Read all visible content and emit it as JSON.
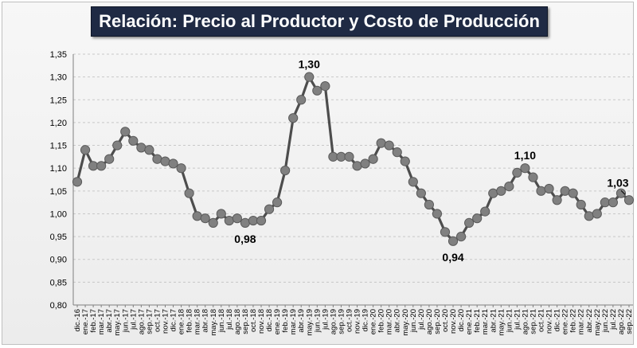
{
  "chart_data": {
    "type": "line",
    "title": "Relación: Precio al Productor y Costo de Producción",
    "xlabel": "",
    "ylabel": "",
    "ylim": [
      0.8,
      1.35
    ],
    "y_ticks": [
      "0,80",
      "0,85",
      "0,90",
      "0,95",
      "1,00",
      "1,05",
      "1,10",
      "1,15",
      "1,20",
      "1,25",
      "1,30",
      "1,35"
    ],
    "grid": true,
    "legend": "none",
    "categories": [
      "dic.-16",
      "ene.-17",
      "feb.-17",
      "mar.-17",
      "abr.-17",
      "may.-17",
      "jun.-17",
      "jul.-17",
      "ago.-17",
      "sep.-17",
      "oct.-17",
      "nov.-17",
      "dic.-17",
      "ene.-18",
      "feb.-18",
      "mar.-18",
      "abr.-18",
      "may.-18",
      "jun.-18",
      "jul.-18",
      "ago.-18",
      "sep.-18",
      "oct.-18",
      "nov.-18",
      "dic.-18",
      "ene.-19",
      "feb.-19",
      "mar.-19",
      "abr.-19",
      "may.-19",
      "jun.-19",
      "jul.-19",
      "ago.-19",
      "sep.-19",
      "oct.-19",
      "nov.-19",
      "dic.-19",
      "ene.-20",
      "feb.-20",
      "mar.-20",
      "abr.-20",
      "may.-20",
      "jun.-20",
      "jul.-20",
      "ago.-20",
      "sep.-20",
      "oct.-20",
      "nov.-20",
      "dic.-20",
      "ene.-21",
      "feb.-21",
      "mar.-21",
      "abr.-21",
      "may.-21",
      "jun.-21",
      "jul.-21",
      "ago.-21",
      "sep.-21",
      "oct.-21",
      "nov.-21",
      "dic.-21",
      "ene.-22",
      "feb.-22",
      "mar.-22",
      "abr.-22",
      "may.-22",
      "jun.-22",
      "jul.-22",
      "ago.-22",
      "sep.-22"
    ],
    "x_tick_labels": [
      "dic.-16",
      "ene.-17",
      "feb.-17",
      "mar.-17",
      "abr.-17",
      "may.-17",
      "jun.-17",
      "jul.-17",
      "ago.-17",
      "sep.-17",
      "oct.-17",
      "nov.-17",
      "dic.-17",
      "ene.-18",
      "feb.-18",
      "mar.-18",
      "abr.-18",
      "may.-18",
      "jun.-18",
      "jul.-18",
      "ago.-18",
      "sep.-18",
      "oct.-18",
      "nov.-18",
      "dic.-18",
      "ene.-19",
      "feb.-19",
      "mar.-19",
      "abr.-19",
      "may.-19",
      "jun.-19",
      "jul.-19",
      "ago.-19",
      "sep.-19",
      "oct.-19",
      "nov.-19",
      "dic.-19",
      "ene.-20",
      "feb.-20",
      "mar.-20",
      "abr.-20",
      "may.-20",
      "jun.-20",
      "jul.-20",
      "ago.-20",
      "sep.-20",
      "oct.-20",
      "nov.-20",
      "dic.-20",
      "ene.-21",
      "feb.-21",
      "mar.-21",
      "abr.-21",
      "may.-21",
      "jun.-21",
      "jul.-21",
      "ago.-21",
      "sep.-21",
      "oct.-21",
      "nov.-21",
      "dic.-21",
      "ene.-22",
      "feb.-22",
      "mar.-22",
      "abr.-22",
      "may.-22",
      "jun.-22",
      "jul.-22",
      "ago.-22",
      "sep.-22"
    ],
    "series": [
      {
        "values": [
          1.07,
          1.14,
          1.105,
          1.105,
          1.12,
          1.15,
          1.18,
          1.16,
          1.145,
          1.14,
          1.12,
          1.115,
          1.11,
          1.1,
          1.045,
          0.995,
          0.99,
          0.98,
          1.0,
          0.985,
          0.99,
          0.98,
          0.985,
          0.985,
          1.01,
          1.025,
          1.095,
          1.21,
          1.25,
          1.3,
          1.27,
          1.28,
          1.125,
          1.125,
          1.125,
          1.105,
          1.11,
          1.12,
          1.155,
          1.15,
          1.135,
          1.115,
          1.07,
          1.045,
          1.02,
          1.0,
          0.96,
          0.94,
          0.95,
          0.98,
          0.99,
          1.005,
          1.045,
          1.05,
          1.06,
          1.09,
          1.1,
          1.08,
          1.05,
          1.055,
          1.03,
          1.05,
          1.045,
          1.02,
          0.995,
          1.0,
          1.025,
          1.025,
          1.045,
          1.03
        ],
        "color": "#808080"
      }
    ],
    "annotations": [
      {
        "index": 29,
        "text": "1,30",
        "position": "above"
      },
      {
        "index": 21,
        "text": "0,98",
        "position": "below"
      },
      {
        "index": 47,
        "text": "0,94",
        "position": "below"
      },
      {
        "index": 56,
        "text": "1,10",
        "position": "above"
      },
      {
        "index": 69,
        "text": "1,03",
        "position": "above"
      }
    ]
  }
}
